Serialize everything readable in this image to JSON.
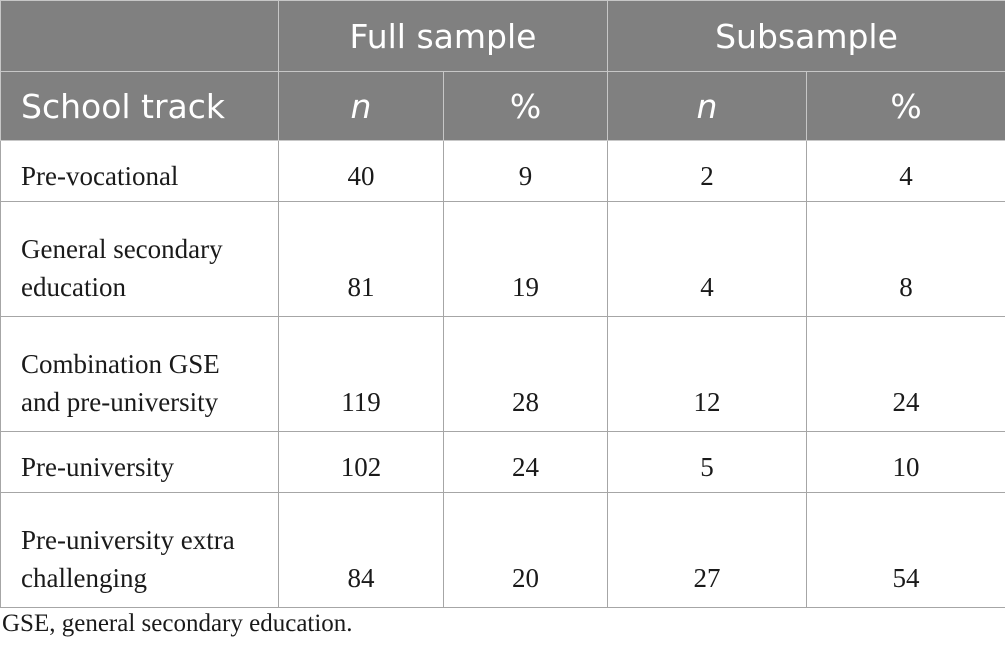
{
  "table": {
    "group_headers": {
      "blank": "",
      "full_sample": "Full sample",
      "subsample": "Subsample"
    },
    "column_headers": {
      "school_track": "School track",
      "n_full": "n",
      "pct_full": "%",
      "n_sub": "n",
      "pct_sub": "%"
    },
    "rows": [
      {
        "line1": "Pre-vocational",
        "line2": "",
        "n_full": "40",
        "pct_full": "9",
        "n_sub": "2",
        "pct_sub": "4"
      },
      {
        "line1": "General secondary",
        "line2": "education",
        "n_full": "81",
        "pct_full": "19",
        "n_sub": "4",
        "pct_sub": "8"
      },
      {
        "line1": "Combination GSE",
        "line2": "and pre-university",
        "n_full": "119",
        "pct_full": "28",
        "n_sub": "12",
        "pct_sub": "24"
      },
      {
        "line1": "Pre-university",
        "line2": "",
        "n_full": "102",
        "pct_full": "24",
        "n_sub": "5",
        "pct_sub": "10"
      },
      {
        "line1": "Pre-university extra",
        "line2": "challenging",
        "n_full": "84",
        "pct_full": "20",
        "n_sub": "27",
        "pct_sub": "54"
      }
    ]
  },
  "footnote": "GSE, general secondary education."
}
